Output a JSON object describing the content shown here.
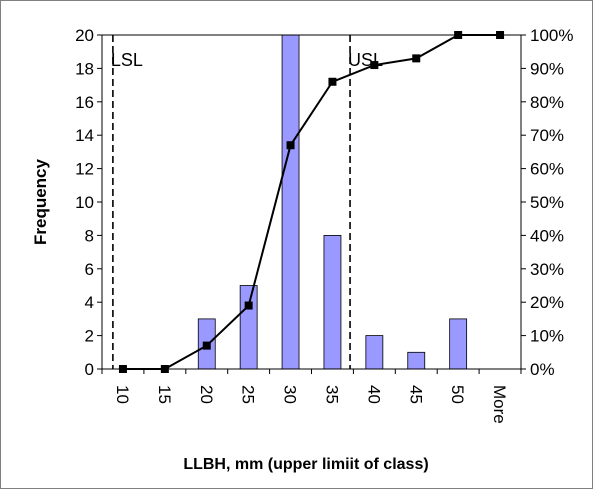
{
  "chart_data": {
    "type": "bar",
    "title": "",
    "xlabel": "LLBH, mm (upper limiit of class)",
    "ylabel": "Frequency",
    "categories": [
      "10",
      "15",
      "20",
      "25",
      "30",
      "35",
      "40",
      "45",
      "50",
      "More"
    ],
    "ylim": [
      0,
      20
    ],
    "y_ticks": [
      "0",
      "2",
      "4",
      "6",
      "8",
      "10",
      "12",
      "14",
      "16",
      "18",
      "20"
    ],
    "y2lim": [
      0,
      100
    ],
    "y2_ticks": [
      "0%",
      "10%",
      "20%",
      "30%",
      "40%",
      "50%",
      "60%",
      "70%",
      "80%",
      "90%",
      "100%"
    ],
    "series": [
      {
        "kind": "bar",
        "values": [
          0,
          0,
          3,
          5,
          20,
          8,
          2,
          1,
          3,
          0
        ],
        "color": "#9999ff"
      },
      {
        "kind": "line",
        "axis": "right",
        "values": [
          0,
          0,
          7,
          19,
          67,
          86,
          91,
          93,
          100,
          100
        ],
        "color": "#000000"
      }
    ],
    "reference_lines": [
      {
        "label": "LSL",
        "x": 8.8
      },
      {
        "label": "USL",
        "x": 37.1
      }
    ],
    "grid": false,
    "legend": "none"
  }
}
